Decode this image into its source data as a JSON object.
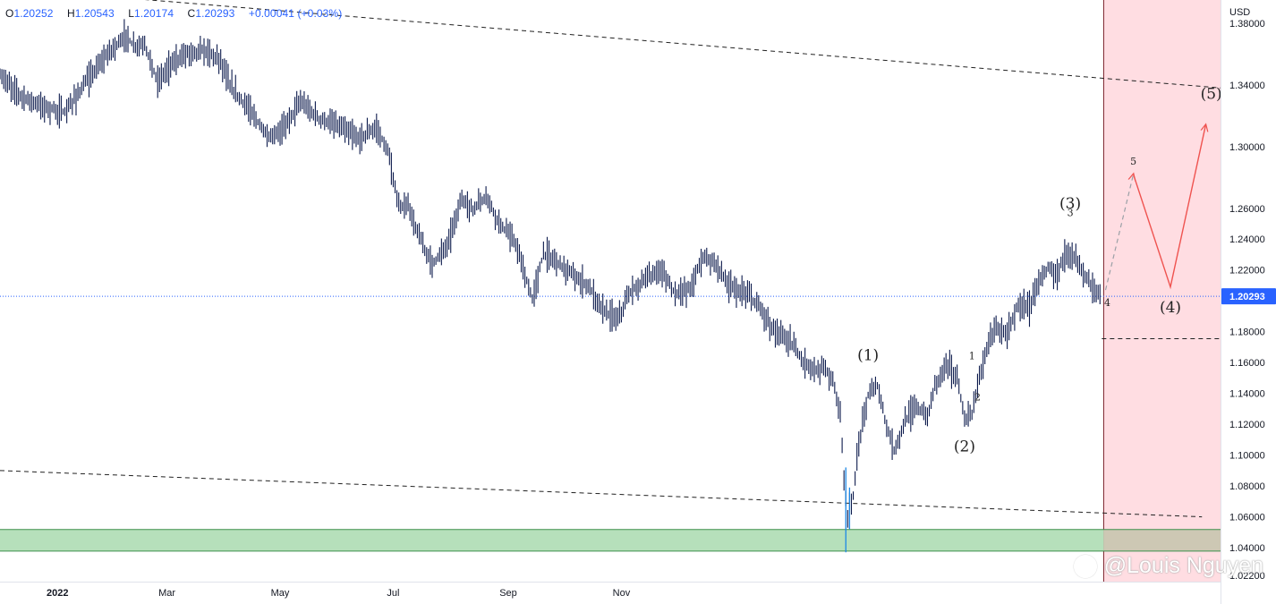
{
  "ohlc": {
    "o_key": "O",
    "o": "1.20252",
    "h_key": "H",
    "h": "1.20543",
    "l_key": "L",
    "l": "1.20174",
    "c_key": "C",
    "c": "1.20293",
    "change": "+0.00041 (+0.03%)"
  },
  "watermark": "@Louis Nguyen",
  "colors": {
    "candle": "#0d1b4d",
    "forecast_zone": "#ffdde2",
    "support_zone": "#b6e0bb",
    "projection": "#ef5350",
    "price_line": "#2962ff",
    "price_label_bg": "#2962ff"
  },
  "icons": [
    "weibo-icon"
  ],
  "chart_data": {
    "type": "line",
    "symbol_axis_unit": "USD",
    "current_price_label": "1.20293",
    "x_axis_labels": [
      "2022",
      "Mar",
      "May",
      "Jul",
      "Sep",
      "Nov"
    ],
    "x_axis_label_dates": [
      "2022-01-01",
      "2022-03-01",
      "2022-05-01",
      "2022-07-01",
      "2022-09-01",
      "2022-11-01"
    ],
    "y_axis_ticks": [
      "1.38000",
      "1.34000",
      "1.30000",
      "1.26000",
      "1.24000",
      "1.22000",
      "1.18000",
      "1.16000",
      "1.14000",
      "1.12000",
      "1.10000",
      "1.08000",
      "1.06000",
      "1.04000",
      "1.02200"
    ],
    "y_range": [
      1.018,
      1.395
    ],
    "x_range": [
      "2021-12-01",
      "2023-09-20"
    ],
    "current_price": 1.20293,
    "price_path": [
      [
        "2021-12-01",
        1.346
      ],
      [
        "2021-12-12",
        1.333
      ],
      [
        "2021-12-24",
        1.326
      ],
      [
        "2022-01-05",
        1.322
      ],
      [
        "2022-01-16",
        1.341
      ],
      [
        "2022-01-28",
        1.36
      ],
      [
        "2022-02-07",
        1.372
      ],
      [
        "2022-02-11",
        1.365
      ],
      [
        "2022-02-17",
        1.366
      ],
      [
        "2022-02-24",
        1.342
      ],
      [
        "2022-03-03",
        1.353
      ],
      [
        "2022-03-12",
        1.361
      ],
      [
        "2022-03-22",
        1.362
      ],
      [
        "2022-03-30",
        1.356
      ],
      [
        "2022-04-04",
        1.339
      ],
      [
        "2022-04-15",
        1.323
      ],
      [
        "2022-04-25",
        1.305
      ],
      [
        "2022-05-02",
        1.311
      ],
      [
        "2022-05-12",
        1.329
      ],
      [
        "2022-05-22",
        1.318
      ],
      [
        "2022-06-02",
        1.313
      ],
      [
        "2022-06-12",
        1.305
      ],
      [
        "2022-06-22",
        1.312
      ],
      [
        "2022-06-28",
        1.297
      ],
      [
        "2022-07-04",
        1.261
      ],
      [
        "2022-07-09",
        1.262
      ],
      [
        "2022-07-14",
        1.244
      ],
      [
        "2022-07-22",
        1.224
      ],
      [
        "2022-07-30",
        1.236
      ],
      [
        "2022-08-07",
        1.266
      ],
      [
        "2022-08-13",
        1.259
      ],
      [
        "2022-08-20",
        1.268
      ],
      [
        "2022-08-27",
        1.251
      ],
      [
        "2022-09-05",
        1.237
      ],
      [
        "2022-09-10",
        1.216
      ],
      [
        "2022-09-14",
        1.201
      ],
      [
        "2022-09-20",
        1.231
      ],
      [
        "2022-09-28",
        1.225
      ],
      [
        "2022-10-06",
        1.216
      ],
      [
        "2022-10-14",
        1.21
      ],
      [
        "2022-10-22",
        1.194
      ],
      [
        "2022-10-30",
        1.188
      ],
      [
        "2022-11-06",
        1.206
      ],
      [
        "2022-11-14",
        1.214
      ],
      [
        "2022-11-22",
        1.22
      ],
      [
        "2022-11-30",
        1.205
      ],
      [
        "2022-12-08",
        1.208
      ],
      [
        "2022-12-15",
        1.229
      ],
      [
        "2022-12-22",
        1.224
      ],
      [
        "2022-12-28",
        1.211
      ],
      [
        "2023-01-03",
        1.206
      ],
      [
        "2023-01-09",
        1.203
      ],
      [
        "2023-01-15",
        1.195
      ],
      [
        "2023-01-22",
        1.181
      ],
      [
        "2023-01-30",
        1.175
      ],
      [
        "2023-02-06",
        1.163
      ],
      [
        "2023-02-13",
        1.154
      ],
      [
        "2023-02-19",
        1.157
      ],
      [
        "2023-02-23",
        1.148
      ],
      [
        "2023-02-27",
        1.128
      ],
      [
        "2023-03-01",
        1.084
      ],
      [
        "2023-03-03",
        1.06
      ],
      [
        "2023-03-06",
        1.073
      ],
      [
        "2023-03-09",
        1.108
      ],
      [
        "2023-03-14",
        1.139
      ],
      [
        "2023-03-19",
        1.145
      ],
      [
        "2023-03-24",
        1.119
      ],
      [
        "2023-03-28",
        1.103
      ],
      [
        "2023-04-03",
        1.122
      ],
      [
        "2023-04-09",
        1.132
      ],
      [
        "2023-04-15",
        1.124
      ],
      [
        "2023-04-19",
        1.145
      ],
      [
        "2023-04-25",
        1.16
      ],
      [
        "2023-05-01",
        1.15
      ],
      [
        "2023-05-05",
        1.123
      ],
      [
        "2023-05-09",
        1.127
      ],
      [
        "2023-05-13",
        1.15
      ],
      [
        "2023-05-17",
        1.17
      ],
      [
        "2023-05-22",
        1.183
      ],
      [
        "2023-05-28",
        1.178
      ],
      [
        "2023-06-03",
        1.198
      ],
      [
        "2023-06-09",
        1.195
      ],
      [
        "2023-06-14",
        1.214
      ],
      [
        "2023-06-19",
        1.222
      ],
      [
        "2023-06-24",
        1.218
      ],
      [
        "2023-06-29",
        1.232
      ],
      [
        "2023-07-02",
        1.231
      ],
      [
        "2023-07-06",
        1.221
      ],
      [
        "2023-07-10",
        1.214
      ],
      [
        "2023-07-14",
        1.207
      ],
      [
        "2023-07-18",
        1.2029
      ]
    ],
    "spikes": [
      {
        "date": "2023-03-02",
        "high": 1.092,
        "low": 1.037
      },
      {
        "date": "2023-03-04",
        "high": 1.079,
        "low": 1.052
      }
    ],
    "forecast_start": "2023-07-19",
    "support_zone": {
      "top": 1.0518,
      "bottom": 1.0378
    },
    "channel_lines": [
      {
        "from": [
          "2021-12-01",
          1.403
        ],
        "to": [
          "2023-09-20",
          1.338
        ]
      },
      {
        "from": [
          "2021-12-01",
          1.09
        ],
        "to": [
          "2023-09-10",
          1.06
        ]
      }
    ],
    "level_line": {
      "from": "2023-07-18",
      "to": "2023-09-25",
      "price": 1.1755
    },
    "projection_dashed": [
      [
        "2023-07-20",
        1.207
      ],
      [
        "2023-08-04",
        1.282
      ]
    ],
    "projection_solid": [
      [
        "2023-08-04",
        1.282
      ],
      [
        "2023-08-24",
        1.209
      ],
      [
        "2023-09-12",
        1.314
      ]
    ],
    "labels": [
      {
        "text": "(1)",
        "date": "2023-03-14",
        "price": 1.1615,
        "size": "large"
      },
      {
        "text": "(2)",
        "date": "2023-05-05",
        "price": 1.1025,
        "size": "large"
      },
      {
        "text": "(3)",
        "date": "2023-07-01",
        "price": 1.26,
        "size": "large"
      },
      {
        "text": "(4)",
        "date": "2023-08-24",
        "price": 1.1925,
        "size": "large"
      },
      {
        "text": "(5)",
        "date": "2023-09-15",
        "price": 1.331,
        "size": "large"
      },
      {
        "text": "1",
        "date": "2023-05-09",
        "price": 1.162,
        "size": "small"
      },
      {
        "text": "2",
        "date": "2023-05-12",
        "price": 1.1355,
        "size": "small"
      },
      {
        "text": "3",
        "date": "2023-07-01",
        "price": 1.255,
        "size": "small"
      },
      {
        "text": "4",
        "date": "2023-07-21",
        "price": 1.1965,
        "size": "small"
      },
      {
        "text": "5",
        "date": "2023-08-04",
        "price": 1.2883,
        "size": "small"
      }
    ]
  }
}
